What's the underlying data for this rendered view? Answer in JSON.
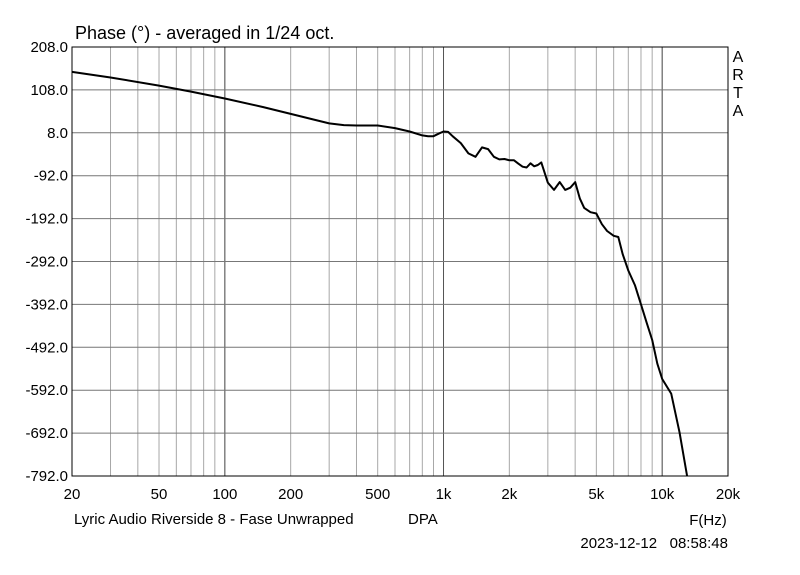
{
  "chart_data": {
    "type": "line",
    "title": "Phase (°) - averaged in 1/24 oct.",
    "side_logo": "ARTA",
    "xlabel": "F(Hz)",
    "ylabel": "",
    "x_scale": "log",
    "xlim": [
      20,
      20000
    ],
    "ylim": [
      -792,
      208
    ],
    "x_ticks": [
      {
        "value": 20,
        "label": "20"
      },
      {
        "value": 50,
        "label": "50"
      },
      {
        "value": 100,
        "label": "100"
      },
      {
        "value": 200,
        "label": "200"
      },
      {
        "value": 500,
        "label": "500"
      },
      {
        "value": 1000,
        "label": "1k"
      },
      {
        "value": 2000,
        "label": "2k"
      },
      {
        "value": 5000,
        "label": "5k"
      },
      {
        "value": 10000,
        "label": "10k"
      },
      {
        "value": 20000,
        "label": "20k"
      }
    ],
    "y_ticks": [
      {
        "value": 208,
        "label": "208.0"
      },
      {
        "value": 108,
        "label": "108.0"
      },
      {
        "value": 8,
        "label": "8.0"
      },
      {
        "value": -92,
        "label": "-92.0"
      },
      {
        "value": -192,
        "label": "-192.0"
      },
      {
        "value": -292,
        "label": "-292.0"
      },
      {
        "value": -392,
        "label": "-392.0"
      },
      {
        "value": -492,
        "label": "-492.0"
      },
      {
        "value": -592,
        "label": "-592.0"
      },
      {
        "value": -692,
        "label": "-692.0"
      },
      {
        "value": -792,
        "label": "-792.0"
      }
    ],
    "grid": true,
    "line_color": "#000000",
    "series": [
      {
        "x": [
          20,
          30,
          50,
          70,
          100,
          150,
          200,
          250,
          300,
          350,
          400,
          500,
          600,
          700,
          800,
          850,
          900,
          950,
          1000,
          1050,
          1100,
          1200,
          1300,
          1400,
          1500,
          1600,
          1700,
          1800,
          1900,
          2000,
          2100,
          2200,
          2300,
          2400,
          2500,
          2600,
          2700,
          2800,
          3000,
          3200,
          3400,
          3600,
          3800,
          4000,
          4200,
          4400,
          4700,
          5000,
          5300,
          5600,
          6000,
          6300,
          6600,
          7000,
          7500,
          8000,
          8500,
          9000,
          9500,
          10000,
          11000,
          12000,
          13000
        ],
        "y": [
          150,
          137,
          118,
          104,
          88,
          68,
          52,
          40,
          30,
          26,
          25,
          25,
          19,
          11,
          2,
          0,
          0,
          6,
          11,
          10,
          0,
          -16,
          -40,
          -48,
          -26,
          -30,
          -48,
          -54,
          -53,
          -56,
          -56,
          -64,
          -71,
          -73,
          -63,
          -70,
          -67,
          -61,
          -108,
          -125,
          -107,
          -125,
          -120,
          -107,
          -145,
          -167,
          -177,
          -180,
          -205,
          -221,
          -232,
          -235,
          -275,
          -313,
          -347,
          -392,
          -435,
          -475,
          -530,
          -566,
          -600,
          -690,
          -792
        ]
      }
    ]
  },
  "footer": {
    "caption": "Lyric Audio Riverside 8 - Fase Unwrapped",
    "mic": "DPA",
    "timestamp": "2023-12-12   08:58:48"
  }
}
